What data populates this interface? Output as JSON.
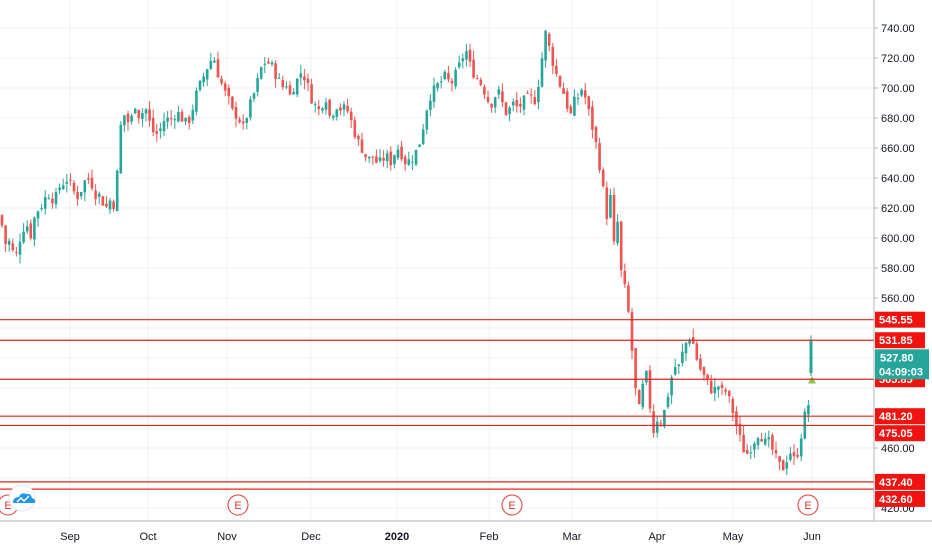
{
  "chart_data": {
    "type": "candlestick",
    "y_axis": {
      "range": [
        420,
        748
      ],
      "ticks": [
        "740.00",
        "720.00",
        "700.00",
        "680.00",
        "660.00",
        "640.00",
        "620.00",
        "600.00",
        "580.00",
        "560.00",
        "460.00",
        "420.00"
      ]
    },
    "x_axis": {
      "ticks": [
        {
          "label": "Sep",
          "bold": false
        },
        {
          "label": "Oct",
          "bold": false
        },
        {
          "label": "Nov",
          "bold": false
        },
        {
          "label": "Dec",
          "bold": false
        },
        {
          "label": "2020",
          "bold": true
        },
        {
          "label": "Feb",
          "bold": false
        },
        {
          "label": "Mar",
          "bold": false
        },
        {
          "label": "Apr",
          "bold": false
        },
        {
          "label": "May",
          "bold": false
        },
        {
          "label": "Jun",
          "bold": false
        }
      ]
    },
    "horizontal_levels": [
      {
        "label": "545.55",
        "value": 545.55
      },
      {
        "label": "531.85",
        "value": 531.85
      },
      {
        "label": "505.85",
        "value": 505.85
      },
      {
        "label": "481.20",
        "value": 481.2
      },
      {
        "label": "475.05",
        "value": 475.05
      },
      {
        "label": "437.40",
        "value": 437.4
      },
      {
        "label": "432.60",
        "value": 432.6
      }
    ],
    "current_price": {
      "label": "527.80",
      "value": 527.8,
      "countdown": "04:09:03"
    },
    "earnings_markers": [
      "E",
      "E",
      "E",
      "E"
    ],
    "colors": {
      "up": "#26a69a",
      "down": "#ef5350",
      "level_line": "#e0251b",
      "level_badge": "#f0130f",
      "current_badge": "#26a69a",
      "grid": "#eef0f3",
      "axis_text": "#131722",
      "earnings": "#e0382f",
      "logo": "#2196f3"
    },
    "candle_anchor_prices": [
      [
        0,
        615
      ],
      [
        6,
        595
      ],
      [
        10,
        598
      ],
      [
        15,
        585
      ],
      [
        20,
        600
      ],
      [
        26,
        612
      ],
      [
        30,
        600
      ],
      [
        36,
        618
      ],
      [
        40,
        620
      ],
      [
        48,
        630
      ],
      [
        55,
        625
      ],
      [
        60,
        635
      ],
      [
        68,
        640
      ],
      [
        72,
        632
      ],
      [
        78,
        628
      ],
      [
        85,
        638
      ],
      [
        90,
        640
      ],
      [
        95,
        630
      ],
      [
        100,
        628
      ],
      [
        106,
        620
      ],
      [
        110,
        625
      ],
      [
        115,
        622
      ],
      [
        118,
        650
      ],
      [
        122,
        685
      ],
      [
        130,
        675
      ],
      [
        135,
        690
      ],
      [
        140,
        680
      ],
      [
        145,
        688
      ],
      [
        150,
        676
      ],
      [
        155,
        668
      ],
      [
        160,
        672
      ],
      [
        165,
        680
      ],
      [
        170,
        678
      ],
      [
        176,
        684
      ],
      [
        180,
        682
      ],
      [
        186,
        676
      ],
      [
        190,
        680
      ],
      [
        196,
        695
      ],
      [
        202,
        705
      ],
      [
        206,
        712
      ],
      [
        210,
        718
      ],
      [
        214,
        720
      ],
      [
        218,
        710
      ],
      [
        222,
        702
      ],
      [
        226,
        695
      ],
      [
        230,
        690
      ],
      [
        234,
        680
      ],
      [
        238,
        685
      ],
      [
        242,
        670
      ],
      [
        246,
        680
      ],
      [
        250,
        688
      ],
      [
        254,
        696
      ],
      [
        258,
        705
      ],
      [
        262,
        715
      ],
      [
        266,
        718
      ],
      [
        270,
        716
      ],
      [
        274,
        712
      ],
      [
        278,
        706
      ],
      [
        282,
        700
      ],
      [
        286,
        704
      ],
      [
        290,
        695
      ],
      [
        294,
        702
      ],
      [
        298,
        706
      ],
      [
        302,
        712
      ],
      [
        306,
        705
      ],
      [
        310,
        696
      ],
      [
        314,
        690
      ],
      [
        318,
        684
      ],
      [
        322,
        690
      ],
      [
        326,
        694
      ],
      [
        330,
        680
      ],
      [
        334,
        686
      ],
      [
        338,
        690
      ],
      [
        342,
        684
      ],
      [
        346,
        688
      ],
      [
        350,
        680
      ],
      [
        354,
        672
      ],
      [
        358,
        664
      ],
      [
        362,
        660
      ],
      [
        366,
        654
      ],
      [
        370,
        652
      ],
      [
        374,
        655
      ],
      [
        378,
        648
      ],
      [
        382,
        652
      ],
      [
        386,
        655
      ],
      [
        390,
        650
      ],
      [
        394,
        656
      ],
      [
        398,
        660
      ],
      [
        402,
        656
      ],
      [
        406,
        650
      ],
      [
        410,
        652
      ],
      [
        414,
        655
      ],
      [
        418,
        660
      ],
      [
        422,
        670
      ],
      [
        426,
        685
      ],
      [
        430,
        695
      ],
      [
        434,
        698
      ],
      [
        438,
        702
      ],
      [
        442,
        705
      ],
      [
        446,
        708
      ],
      [
        450,
        702
      ],
      [
        454,
        706
      ],
      [
        458,
        712
      ],
      [
        462,
        720
      ],
      [
        466,
        725
      ],
      [
        470,
        715
      ],
      [
        474,
        710
      ],
      [
        478,
        706
      ],
      [
        482,
        702
      ],
      [
        486,
        696
      ],
      [
        490,
        688
      ],
      [
        494,
        694
      ],
      [
        498,
        698
      ],
      [
        502,
        690
      ],
      [
        506,
        684
      ],
      [
        510,
        686
      ],
      [
        514,
        690
      ],
      [
        518,
        686
      ],
      [
        522,
        690
      ],
      [
        526,
        692
      ],
      [
        530,
        694
      ],
      [
        534,
        690
      ],
      [
        538,
        702
      ],
      [
        542,
        720
      ],
      [
        546,
        738
      ],
      [
        550,
        724
      ],
      [
        554,
        715
      ],
      [
        558,
        705
      ],
      [
        562,
        700
      ],
      [
        566,
        692
      ],
      [
        570,
        680
      ],
      [
        574,
        690
      ],
      [
        578,
        694
      ],
      [
        582,
        700
      ],
      [
        586,
        692
      ],
      [
        590,
        680
      ],
      [
        594,
        670
      ],
      [
        598,
        655
      ],
      [
        602,
        640
      ],
      [
        606,
        612
      ],
      [
        610,
        630
      ],
      [
        614,
        595
      ],
      [
        618,
        612
      ],
      [
        622,
        568
      ],
      [
        626,
        565
      ],
      [
        630,
        540
      ],
      [
        634,
        510
      ],
      [
        638,
        480
      ],
      [
        642,
        498
      ],
      [
        646,
        510
      ],
      [
        650,
        488
      ],
      [
        654,
        470
      ],
      [
        658,
        482
      ],
      [
        662,
        476
      ],
      [
        666,
        490
      ],
      [
        670,
        502
      ],
      [
        674,
        515
      ],
      [
        678,
        512
      ],
      [
        682,
        522
      ],
      [
        686,
        530
      ],
      [
        690,
        535
      ],
      [
        694,
        528
      ],
      [
        698,
        516
      ],
      [
        702,
        510
      ],
      [
        706,
        505
      ],
      [
        710,
        500
      ],
      [
        714,
        498
      ],
      [
        718,
        502
      ],
      [
        722,
        497
      ],
      [
        726,
        498
      ],
      [
        730,
        490
      ],
      [
        734,
        482
      ],
      [
        738,
        470
      ],
      [
        742,
        462
      ],
      [
        746,
        455
      ],
      [
        750,
        460
      ],
      [
        754,
        465
      ],
      [
        758,
        470
      ],
      [
        762,
        468
      ],
      [
        766,
        462
      ],
      [
        770,
        464
      ],
      [
        774,
        455
      ],
      [
        778,
        450
      ],
      [
        782,
        445
      ],
      [
        786,
        452
      ],
      [
        790,
        458
      ],
      [
        794,
        452
      ],
      [
        798,
        458
      ],
      [
        802,
        472
      ],
      [
        806,
        485
      ],
      [
        810,
        492
      ],
      [
        814,
        510
      ]
    ]
  }
}
